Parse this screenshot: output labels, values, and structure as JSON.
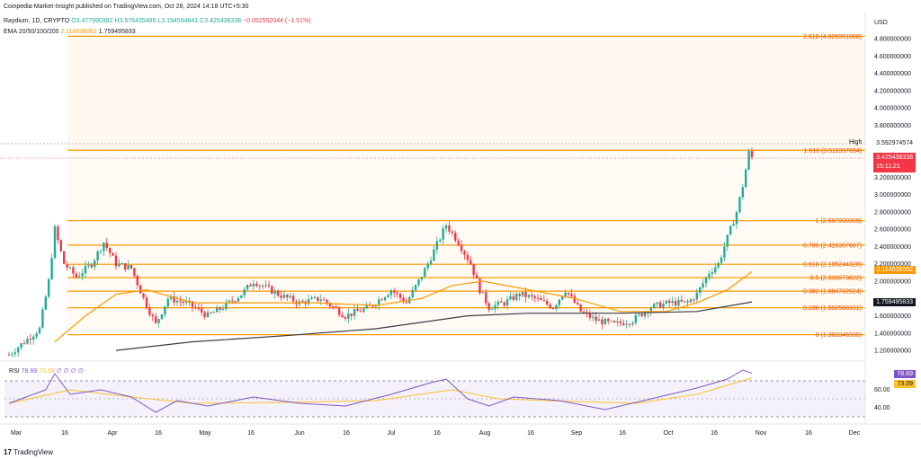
{
  "header": {
    "published": "Coinpedia-Market-Insight published on TradingView.com, Oct 28, 2024 14:18 UTC+5:30",
    "symbol": "Raydium, 1D, CRYPTO",
    "open": "O3.477990382",
    "high": "H3.576435485",
    "low": "L3.194594841",
    "close": "C3.425438338",
    "change": "−0.052552044 (−1.51%)",
    "ema_label": "EMA 20/50/100/200",
    "ema_v1": "2.114038062",
    "ema_v2": "1.759495833"
  },
  "price_axis": {
    "currency": "USD",
    "ticks": [
      "4.800000000",
      "4.600000000",
      "4.400000000",
      "4.200000000",
      "4.000000000",
      "3.800000000",
      "3.200000000",
      "3.000000000",
      "2.800000000",
      "2.600000000",
      "2.400000000",
      "2.200000000",
      "2.000000000",
      "1.600000000",
      "1.400000000",
      "1.200000000"
    ],
    "high_label": "High",
    "high_value": "3.592974574",
    "last_price": "3.425438338",
    "countdown": "15:11:21",
    "ema_fast_value": "2.114038062",
    "ema_slow_value": "1.759495833"
  },
  "rsi": {
    "label": "RSI",
    "v1": "78.69",
    "v2": "73.09",
    "extra": "∅ ∅ ∅ ∅",
    "ticks": [
      "60.00",
      "40.00"
    ],
    "tag1": "78.69",
    "tag2": "73.09"
  },
  "time_axis": [
    "Mar",
    "16",
    "Apr",
    "16",
    "May",
    "16",
    "Jun",
    "16",
    "Jul",
    "16",
    "Aug",
    "16",
    "Sep",
    "16",
    "Oct",
    "16",
    "Nov",
    "16",
    "Dec"
  ],
  "footer": {
    "brand": "TradingView"
  },
  "colors": {
    "up": "#22ab94",
    "down": "#f23645",
    "fib": "#ff9800",
    "ema_fast": "#ff9800",
    "ema_slow": "#363a45",
    "rsi": "#7e57c2",
    "rsi_ma": "#fbc02d"
  },
  "chart_data": {
    "type": "candlestick",
    "ylim": [
      1.1,
      4.9
    ],
    "fib_levels": [
      {
        "label": "0 (1.382046935)",
        "value": 1.382
      },
      {
        "label": "0.236 (1.692588331)",
        "value": 1.6926
      },
      {
        "label": "0.382 (1.884702924)",
        "value": 1.8847
      },
      {
        "label": "0.5 (2.039973622)",
        "value": 2.04
      },
      {
        "label": "0.618 (2.195244320)",
        "value": 2.1952
      },
      {
        "label": "0.786 (2.416307687)",
        "value": 2.4163
      },
      {
        "label": "1 (2.697900309)",
        "value": 2.6979
      },
      {
        "label": "1.618 (3.511097694)",
        "value": 3.5111
      },
      {
        "label": "2.618 (4.826951068)",
        "value": 4.827
      }
    ],
    "price_path": [
      [
        0,
        1.15
      ],
      [
        5,
        1.3
      ],
      [
        10,
        1.45
      ],
      [
        13,
        2.0
      ],
      [
        15,
        2.6
      ],
      [
        18,
        2.2
      ],
      [
        22,
        2.05
      ],
      [
        27,
        2.2
      ],
      [
        31,
        2.45
      ],
      [
        35,
        2.2
      ],
      [
        40,
        2.15
      ],
      [
        44,
        1.8
      ],
      [
        48,
        1.5
      ],
      [
        52,
        1.8
      ],
      [
        58,
        1.75
      ],
      [
        65,
        1.6
      ],
      [
        70,
        1.7
      ],
      [
        76,
        1.85
      ],
      [
        80,
        2.0
      ],
      [
        88,
        1.85
      ],
      [
        95,
        1.75
      ],
      [
        102,
        1.8
      ],
      [
        110,
        1.6
      ],
      [
        118,
        1.7
      ],
      [
        125,
        1.9
      ],
      [
        130,
        1.75
      ],
      [
        134,
        2.0
      ],
      [
        137,
        2.2
      ],
      [
        141,
        2.5
      ],
      [
        143,
        2.65
      ],
      [
        147,
        2.45
      ],
      [
        151,
        2.2
      ],
      [
        154,
        1.9
      ],
      [
        157,
        1.7
      ],
      [
        162,
        1.75
      ],
      [
        167,
        1.85
      ],
      [
        172,
        1.8
      ],
      [
        178,
        1.7
      ],
      [
        182,
        1.9
      ],
      [
        187,
        1.65
      ],
      [
        192,
        1.55
      ],
      [
        198,
        1.5
      ],
      [
        204,
        1.55
      ],
      [
        210,
        1.7
      ],
      [
        216,
        1.75
      ],
      [
        222,
        1.75
      ],
      [
        225,
        1.85
      ],
      [
        229,
        2.1
      ],
      [
        232,
        2.2
      ],
      [
        235,
        2.5
      ],
      [
        238,
        2.8
      ],
      [
        240,
        3.1
      ],
      [
        242,
        3.48
      ],
      [
        243,
        3.43
      ]
    ],
    "ema_fast_path": [
      [
        15,
        1.3
      ],
      [
        25,
        1.6
      ],
      [
        35,
        1.85
      ],
      [
        45,
        1.9
      ],
      [
        60,
        1.75
      ],
      [
        80,
        1.75
      ],
      [
        100,
        1.75
      ],
      [
        120,
        1.72
      ],
      [
        135,
        1.8
      ],
      [
        145,
        1.95
      ],
      [
        155,
        2.0
      ],
      [
        170,
        1.9
      ],
      [
        185,
        1.8
      ],
      [
        200,
        1.65
      ],
      [
        215,
        1.65
      ],
      [
        225,
        1.75
      ],
      [
        235,
        1.9
      ],
      [
        243,
        2.11
      ]
    ],
    "ema_slow_path": [
      [
        35,
        1.2
      ],
      [
        60,
        1.3
      ],
      [
        90,
        1.37
      ],
      [
        120,
        1.45
      ],
      [
        150,
        1.6
      ],
      [
        170,
        1.63
      ],
      [
        200,
        1.63
      ],
      [
        225,
        1.65
      ],
      [
        243,
        1.76
      ]
    ],
    "rsi_ylim": [
      20,
      90
    ],
    "rsi_path": [
      [
        0,
        45
      ],
      [
        12,
        60
      ],
      [
        15,
        78
      ],
      [
        20,
        55
      ],
      [
        30,
        60
      ],
      [
        40,
        52
      ],
      [
        48,
        35
      ],
      [
        55,
        48
      ],
      [
        65,
        42
      ],
      [
        80,
        52
      ],
      [
        95,
        45
      ],
      [
        110,
        42
      ],
      [
        125,
        55
      ],
      [
        138,
        68
      ],
      [
        143,
        72
      ],
      [
        150,
        50
      ],
      [
        157,
        42
      ],
      [
        165,
        52
      ],
      [
        180,
        48
      ],
      [
        195,
        38
      ],
      [
        210,
        50
      ],
      [
        225,
        62
      ],
      [
        235,
        72
      ],
      [
        240,
        82
      ],
      [
        243,
        78.69
      ]
    ],
    "rsi_ma_path": [
      [
        0,
        45
      ],
      [
        20,
        60
      ],
      [
        40,
        52
      ],
      [
        60,
        45
      ],
      [
        90,
        46
      ],
      [
        120,
        48
      ],
      [
        145,
        60
      ],
      [
        160,
        50
      ],
      [
        185,
        47
      ],
      [
        205,
        45
      ],
      [
        225,
        55
      ],
      [
        243,
        73.09
      ]
    ]
  }
}
